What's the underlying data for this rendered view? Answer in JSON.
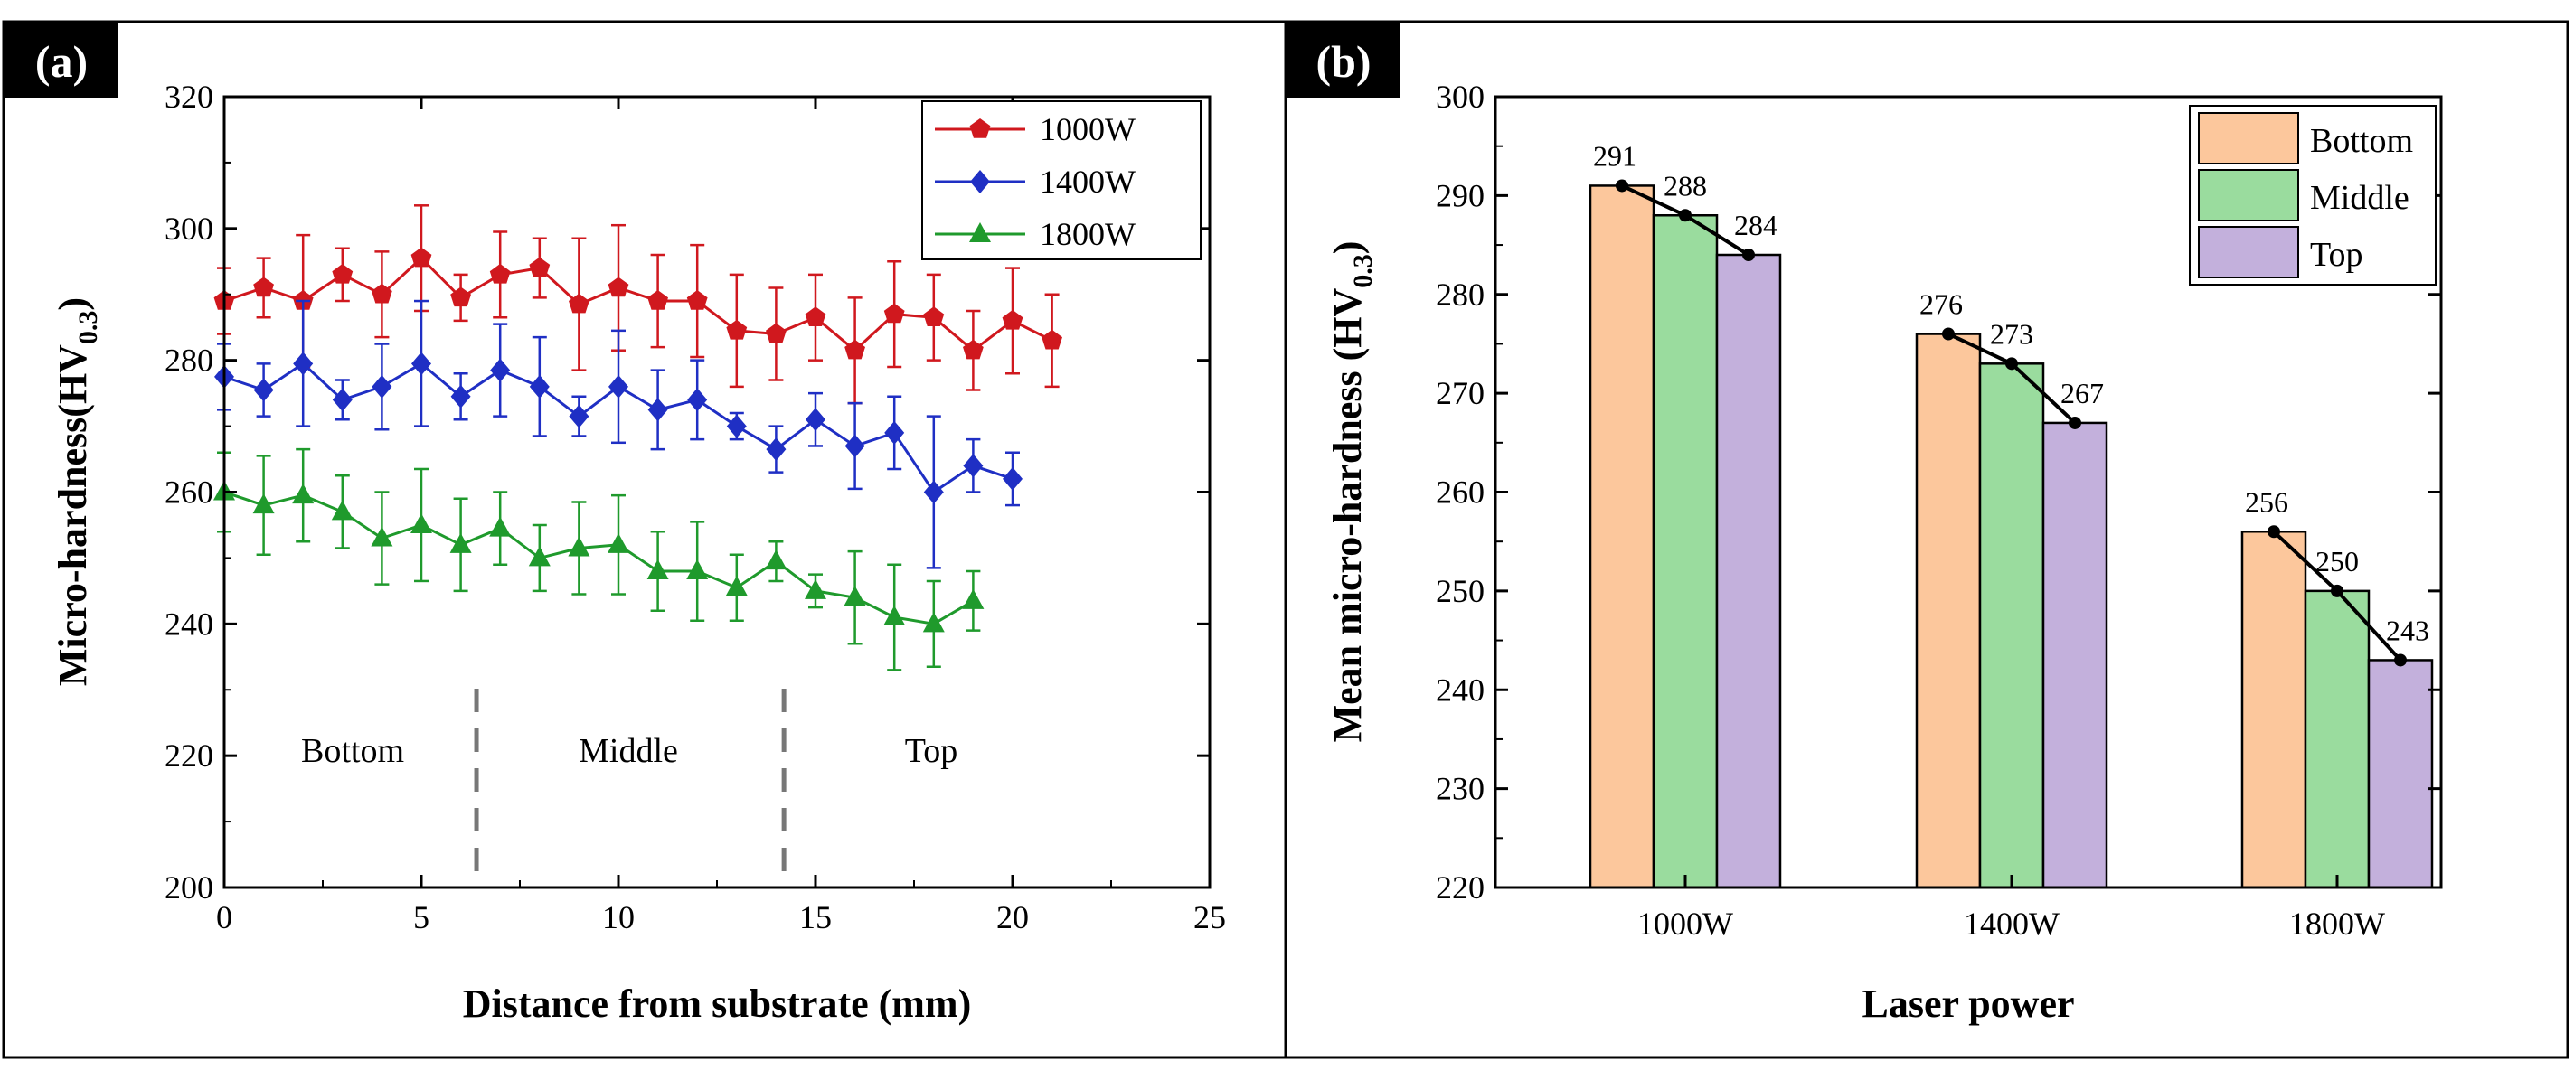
{
  "panel_labels": {
    "a": "(a)",
    "b": "(b)"
  },
  "colors": {
    "s1000": "#d0181e",
    "s1400": "#1f2fc4",
    "s1800": "#1f9a2c",
    "bottom": "#fcc79c",
    "middle": "#9adc9e",
    "top": "#c3b0dc"
  },
  "chart_data": [
    {
      "type": "line",
      "panel": "(a)",
      "xlabel": "Distance from substrate (mm)",
      "ylabel_main": "Micro-hardness(HV",
      "ylabel_sub": "0.3",
      "ylabel_close": ")",
      "xlim": [
        0,
        25
      ],
      "ylim": [
        200,
        320
      ],
      "xticks": [
        "0",
        "5",
        "10",
        "15",
        "20",
        "25"
      ],
      "yticks": [
        "200",
        "220",
        "240",
        "260",
        "280",
        "300",
        "320"
      ],
      "regions": [
        "Bottom",
        "Middle",
        "Top"
      ],
      "region_boundaries": [
        6.4,
        14.2
      ],
      "legend": [
        "1000W",
        "1400W",
        "1800W"
      ],
      "series": [
        {
          "name": "1000W",
          "marker": "pentagon",
          "color_key": "s1000",
          "x": [
            0,
            1,
            2,
            3,
            4,
            5,
            6,
            7,
            8,
            9,
            10,
            11,
            12,
            13,
            14,
            15,
            16,
            17,
            18,
            19,
            20,
            21
          ],
          "y": [
            289,
            291,
            289,
            293,
            290,
            295.5,
            289.5,
            293,
            294,
            288.5,
            291,
            289,
            289,
            284.5,
            284,
            286.5,
            281.5,
            287,
            286.5,
            281.5,
            286,
            283
          ],
          "err": [
            5,
            4.5,
            10,
            4,
            6.5,
            8,
            3.5,
            6.5,
            4.5,
            10,
            9.5,
            7,
            8.5,
            8.5,
            7,
            6.5,
            8,
            8,
            6.5,
            6,
            8,
            7
          ]
        },
        {
          "name": "1400W",
          "marker": "diamond",
          "color_key": "s1400",
          "x": [
            0,
            1,
            2,
            3,
            4,
            5,
            6,
            7,
            8,
            9,
            10,
            11,
            12,
            13,
            14,
            15,
            16,
            17,
            18,
            19,
            20
          ],
          "y": [
            277.5,
            275.5,
            279.5,
            274,
            276,
            279.5,
            274.5,
            278.5,
            276,
            271.5,
            276,
            272.5,
            274,
            270,
            266.5,
            271,
            267,
            269,
            260,
            264,
            262
          ],
          "err": [
            5,
            4,
            9.5,
            3,
            6.5,
            9.5,
            3.5,
            7,
            7.5,
            3,
            8.5,
            6,
            6,
            2,
            3.5,
            4,
            6.5,
            5.5,
            11.5,
            4,
            4
          ]
        },
        {
          "name": "1800W",
          "marker": "triangle",
          "color_key": "s1800",
          "x": [
            0,
            1,
            2,
            3,
            4,
            5,
            6,
            7,
            8,
            9,
            10,
            11,
            12,
            13,
            14,
            15,
            16,
            17,
            18,
            19
          ],
          "y": [
            260,
            258,
            259.5,
            257,
            253,
            255,
            252,
            254.5,
            250,
            251.5,
            252,
            248,
            248,
            245.5,
            249.5,
            245,
            244,
            241,
            240,
            243.5
          ],
          "err": [
            6,
            7.5,
            7,
            5.5,
            7,
            8.5,
            7,
            5.5,
            5,
            7,
            7.5,
            6,
            7.5,
            5,
            3,
            2.5,
            7,
            8,
            6.5,
            4.5
          ]
        }
      ]
    },
    {
      "type": "bar",
      "panel": "(b)",
      "xlabel": "Laser power",
      "ylabel_main": "Mean micro-hardness (HV",
      "ylabel_sub": "0.3",
      "ylabel_close": ")",
      "ylim": [
        220,
        300
      ],
      "yticks": [
        "220",
        "230",
        "240",
        "250",
        "260",
        "270",
        "280",
        "290",
        "300"
      ],
      "categories": [
        "1000W",
        "1400W",
        "1800W"
      ],
      "series": [
        {
          "name": "Bottom",
          "color_key": "bottom",
          "values": [
            291,
            276,
            256
          ]
        },
        {
          "name": "Middle",
          "color_key": "middle",
          "values": [
            288,
            273,
            250
          ]
        },
        {
          "name": "Top",
          "color_key": "top",
          "values": [
            284,
            267,
            243
          ]
        }
      ]
    }
  ]
}
